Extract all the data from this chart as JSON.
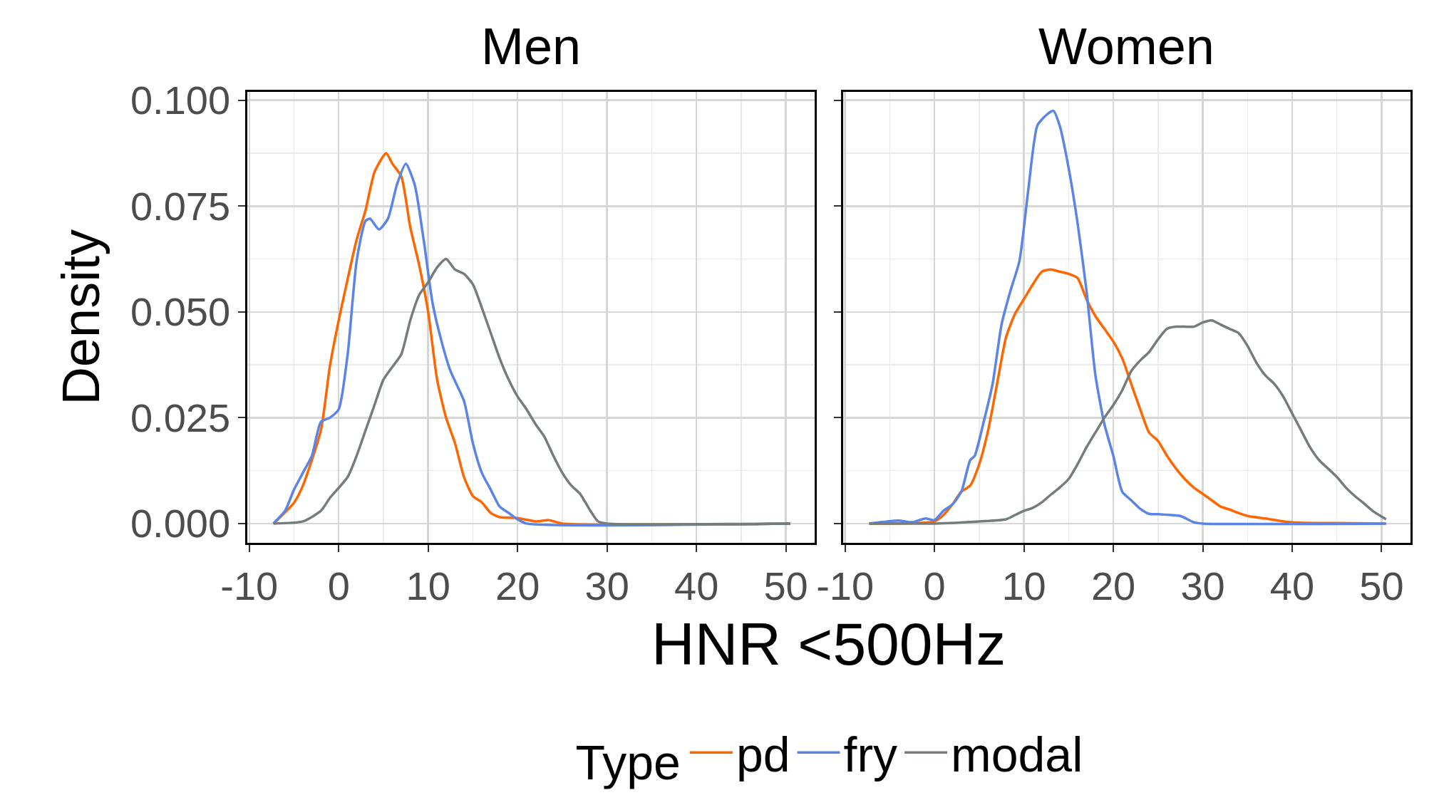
{
  "chart_data": [
    {
      "type": "line",
      "title": "Men",
      "xlabel": "HNR <500Hz",
      "ylabel": "Density",
      "legend_title": "Type",
      "legend": "bottom",
      "grid": true,
      "xlim": [
        -10.2,
        53.2
      ],
      "ylim": [
        -0.0045,
        0.102
      ],
      "xticks": [
        -10,
        0,
        10,
        20,
        30,
        40,
        50
      ],
      "yticks": [
        {
          "value": 0,
          "label": "0.000"
        },
        {
          "value": 0.025,
          "label": "0.025"
        },
        {
          "value": 0.05,
          "label": "0.050"
        },
        {
          "value": 0.075,
          "label": "0.075"
        },
        {
          "value": 0.1,
          "label": "0.100"
        }
      ],
      "series": [
        {
          "name": "pd",
          "color": "#ff6600",
          "x": [
            -7.3,
            -5,
            -4,
            -2,
            -1,
            0,
            2,
            3,
            4,
            5.3,
            6,
            7,
            8,
            9,
            10,
            11,
            12,
            13,
            14,
            15,
            16,
            17,
            18,
            20,
            22,
            23.5,
            25,
            50.5
          ],
          "values": [
            0,
            0.0049,
            0.009,
            0.022,
            0.037,
            0.048,
            0.067,
            0.074,
            0.083,
            0.0875,
            0.085,
            0.082,
            0.07,
            0.061,
            0.05,
            0.034,
            0.025,
            0.019,
            0.011,
            0.0065,
            0.005,
            0.0025,
            0.0015,
            0.0013,
            0.0005,
            0.0008,
            0,
            0
          ]
        },
        {
          "name": "fry",
          "color": "#5b84e8",
          "x": [
            -7.3,
            -6,
            -5,
            -4,
            -3,
            -2,
            -1,
            0,
            1,
            2,
            3,
            3.5,
            4.5,
            5.5,
            6.5,
            7.5,
            8.5,
            9.5,
            10.5,
            11.5,
            12.5,
            14,
            15,
            16,
            17,
            18,
            19,
            20,
            21,
            50.5
          ],
          "values": [
            0,
            0.003,
            0.008,
            0.012,
            0.016,
            0.024,
            0.025,
            0.027,
            0.04,
            0.062,
            0.0715,
            0.072,
            0.0695,
            0.072,
            0.08,
            0.085,
            0.08,
            0.067,
            0.052,
            0.043,
            0.036,
            0.029,
            0.019,
            0.012,
            0.008,
            0.004,
            0.0025,
            0.001,
            0,
            0
          ]
        },
        {
          "name": "modal",
          "color": "#757d7a",
          "x": [
            -7.3,
            -4,
            -2,
            -1,
            1,
            2,
            3,
            4,
            5,
            6,
            7,
            8,
            9,
            10,
            11,
            12,
            13,
            14,
            15,
            16,
            17,
            18,
            19,
            20,
            21,
            22,
            23,
            24,
            25,
            26,
            27,
            28,
            29,
            30,
            50.5
          ],
          "values": [
            0,
            0.0005,
            0.003,
            0.006,
            0.011,
            0.016,
            0.022,
            0.028,
            0.034,
            0.037,
            0.04,
            0.048,
            0.054,
            0.057,
            0.0605,
            0.0625,
            0.06,
            0.059,
            0.0565,
            0.051,
            0.045,
            0.039,
            0.034,
            0.03,
            0.027,
            0.0235,
            0.0205,
            0.016,
            0.012,
            0.009,
            0.007,
            0.0035,
            0.0005,
            0,
            0
          ]
        }
      ]
    },
    {
      "type": "line",
      "title": "Women",
      "tick_labels": "x",
      "grid": true,
      "xlim": [
        -10.2,
        53.2
      ],
      "ylim": [
        -0.0045,
        0.102
      ],
      "xticks": [
        -10,
        0,
        10,
        20,
        30,
        40,
        50
      ],
      "yticks": [
        {
          "value": 0,
          "label": null
        },
        {
          "value": 0.025,
          "label": null
        },
        {
          "value": 0.05,
          "label": null
        },
        {
          "value": 0.075,
          "label": null
        },
        {
          "value": 0.1,
          "label": null
        }
      ],
      "series": [
        {
          "color": "#ff6600",
          "x": [
            -7.3,
            0,
            1,
            2,
            3,
            4,
            5,
            6,
            7,
            8,
            9,
            10,
            11,
            12,
            13,
            14,
            15,
            16,
            17,
            18,
            19,
            20,
            21,
            22,
            23,
            24,
            25,
            26,
            27,
            28,
            29,
            30,
            31,
            32,
            33,
            34,
            35,
            37,
            39,
            41,
            45,
            50.5
          ],
          "values": [
            0,
            0.0005,
            0.002,
            0.0045,
            0.0075,
            0.009,
            0.014,
            0.022,
            0.033,
            0.044,
            0.0495,
            0.053,
            0.0565,
            0.0595,
            0.06,
            0.0595,
            0.059,
            0.058,
            0.053,
            0.049,
            0.046,
            0.043,
            0.039,
            0.033,
            0.027,
            0.0215,
            0.0195,
            0.016,
            0.013,
            0.0105,
            0.0085,
            0.007,
            0.0055,
            0.004,
            0.0033,
            0.0025,
            0.0018,
            0.0012,
            0.0005,
            0.0002,
            0.0001,
            0
          ]
        },
        {
          "color": "#5b84e8",
          "x": [
            -7.3,
            -4,
            -2.5,
            -1,
            0,
            1,
            2,
            3,
            4,
            4.5,
            5.5,
            6.5,
            7.5,
            8.5,
            9.5,
            10.5,
            11.5,
            12.5,
            13.3,
            14,
            15,
            16,
            17,
            18,
            19,
            20,
            21,
            22,
            23,
            24,
            25,
            26.5,
            27.5,
            29,
            30,
            50.5
          ],
          "values": [
            0,
            0.0007,
            0.0003,
            0.0012,
            0.0008,
            0.003,
            0.0045,
            0.0075,
            0.015,
            0.016,
            0.024,
            0.033,
            0.047,
            0.055,
            0.062,
            0.079,
            0.094,
            0.0965,
            0.0975,
            0.094,
            0.084,
            0.071,
            0.055,
            0.035,
            0.0235,
            0.016,
            0.0075,
            0.0055,
            0.0035,
            0.0023,
            0.0022,
            0.002,
            0.0018,
            0.0003,
            0,
            0
          ]
        },
        {
          "color": "#757d7a",
          "x": [
            -7.3,
            0,
            5,
            8,
            9,
            10,
            11,
            12,
            13,
            14,
            15,
            16,
            17,
            18,
            19,
            20,
            21,
            22,
            23,
            24,
            25,
            26,
            27,
            28,
            29,
            30,
            31,
            32,
            33,
            34,
            35,
            36,
            37,
            38,
            39,
            40,
            41,
            42,
            43,
            44,
            45,
            46,
            47,
            48,
            49,
            50.5
          ],
          "values": [
            0,
            0,
            0.0005,
            0.001,
            0.002,
            0.003,
            0.0037,
            0.005,
            0.0068,
            0.0085,
            0.0105,
            0.014,
            0.018,
            0.0215,
            0.025,
            0.028,
            0.0315,
            0.036,
            0.0385,
            0.0405,
            0.0435,
            0.046,
            0.0465,
            0.0465,
            0.0465,
            0.0475,
            0.048,
            0.047,
            0.046,
            0.045,
            0.042,
            0.038,
            0.035,
            0.033,
            0.03,
            0.026,
            0.022,
            0.018,
            0.015,
            0.013,
            0.011,
            0.0085,
            0.0065,
            0.0048,
            0.003,
            0.001
          ]
        }
      ]
    }
  ]
}
